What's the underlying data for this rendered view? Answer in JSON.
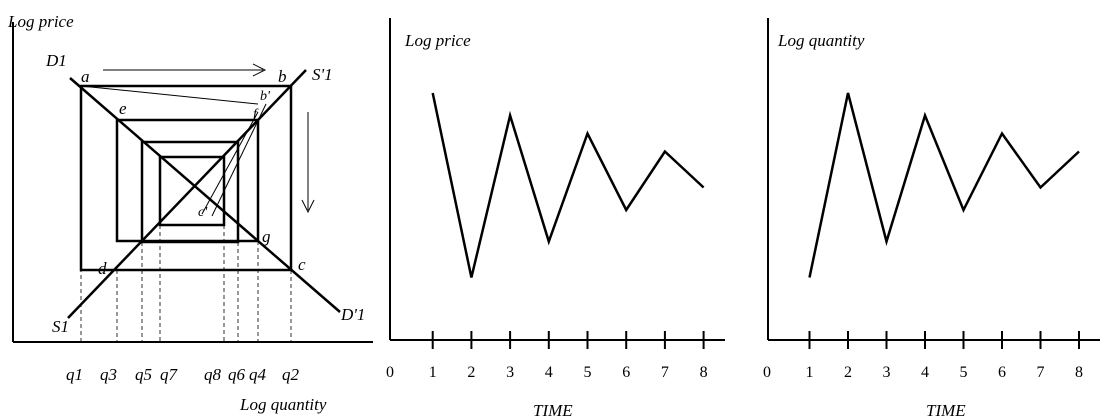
{
  "cobweb": {
    "y_axis_label": "Log price",
    "x_axis_label": "Log quantity",
    "curve_labels": {
      "demand_left": "D1",
      "supply_right": "S'1",
      "supply_left": "S1",
      "demand_right": "D'1"
    },
    "point_labels": {
      "a": "a",
      "b": "b",
      "b_prime": "b'",
      "c": "c",
      "c_prime": "c'",
      "d": "d",
      "e": "e",
      "f": "f",
      "g": "g"
    },
    "quantity_labels": [
      "q1",
      "q3",
      "q5",
      "q7",
      "q8",
      "q6",
      "q4",
      "q2"
    ]
  },
  "price_panel": {
    "title": "Log price",
    "xlabel": "TIME",
    "x_ticks": [
      "0",
      "1",
      "2",
      "3",
      "4",
      "5",
      "6",
      "7",
      "8"
    ]
  },
  "quantity_panel": {
    "title": "Log quantity",
    "xlabel": "TIME",
    "x_ticks": [
      "0",
      "1",
      "2",
      "3",
      "4",
      "5",
      "6",
      "7",
      "8"
    ]
  },
  "chart_data": [
    {
      "type": "line",
      "title": "Log price",
      "xlabel": "TIME",
      "ylabel": "",
      "x": [
        1,
        2,
        3,
        4,
        5,
        6,
        7,
        8
      ],
      "series": [
        {
          "values": [
            0.92,
            0.1,
            0.82,
            0.26,
            0.74,
            0.4,
            0.66,
            0.5
          ]
        }
      ]
    },
    {
      "type": "line",
      "title": "Log quantity",
      "xlabel": "TIME",
      "ylabel": "",
      "x": [
        1,
        2,
        3,
        4,
        5,
        6,
        7,
        8
      ],
      "series": [
        {
          "values": [
            0.1,
            0.92,
            0.26,
            0.82,
            0.4,
            0.74,
            0.5,
            0.66
          ]
        }
      ]
    }
  ]
}
